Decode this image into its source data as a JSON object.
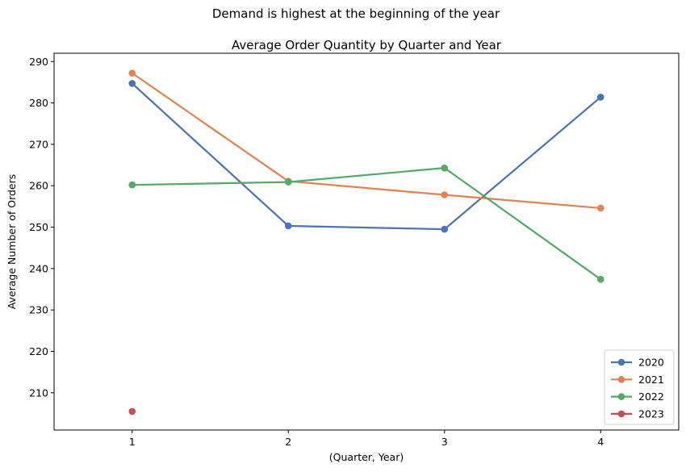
{
  "chart_data": {
    "type": "line",
    "suptitle": "Demand is highest at the beginning of the year",
    "title": "Average Order Quantity by Quarter and Year",
    "xlabel": "(Quarter, Year)",
    "ylabel": "Average Number of Orders",
    "x": [
      1,
      2,
      3,
      4
    ],
    "xlim": [
      0.5,
      4.5
    ],
    "ylim": [
      201,
      292
    ],
    "yticks": [
      210,
      220,
      230,
      240,
      250,
      260,
      270,
      280,
      290
    ],
    "grid": false,
    "legend_position": "lower-right",
    "series": [
      {
        "name": "2020",
        "color": "#4c72b0",
        "x": [
          1,
          2,
          3,
          4
        ],
        "values": [
          284.7,
          250.3,
          249.5,
          281.4
        ]
      },
      {
        "name": "2021",
        "color": "#dd8452",
        "x": [
          1,
          2,
          3,
          4
        ],
        "values": [
          287.2,
          261.1,
          257.8,
          254.6
        ]
      },
      {
        "name": "2022",
        "color": "#55a868",
        "x": [
          1,
          2,
          3,
          4
        ],
        "values": [
          260.2,
          260.9,
          264.3,
          237.4
        ]
      },
      {
        "name": "2023",
        "color": "#c44e52",
        "x": [
          1
        ],
        "values": [
          205.5
        ]
      }
    ]
  }
}
